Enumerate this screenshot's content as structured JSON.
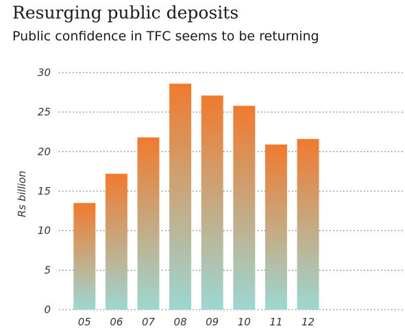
{
  "chart_data": {
    "type": "bar",
    "title": "Resurging public deposits",
    "subtitle": "Public confidence in TFC seems to be returning",
    "ylabel": "Rs billion",
    "xlabel": "",
    "categories": [
      "05",
      "06",
      "07",
      "08",
      "09",
      "10",
      "11",
      "12"
    ],
    "values": [
      13.5,
      17.2,
      21.8,
      28.6,
      27.1,
      25.8,
      20.9,
      21.6
    ],
    "ylim": [
      0,
      30
    ],
    "yticks": [
      0,
      5,
      10,
      15,
      20,
      25,
      30
    ],
    "grid": true,
    "colors": {
      "bar_top": "#f07a2e",
      "bar_bottom": "#9dd7d2",
      "grid": "#4a4a4a",
      "text": "#1a1a1a"
    }
  }
}
